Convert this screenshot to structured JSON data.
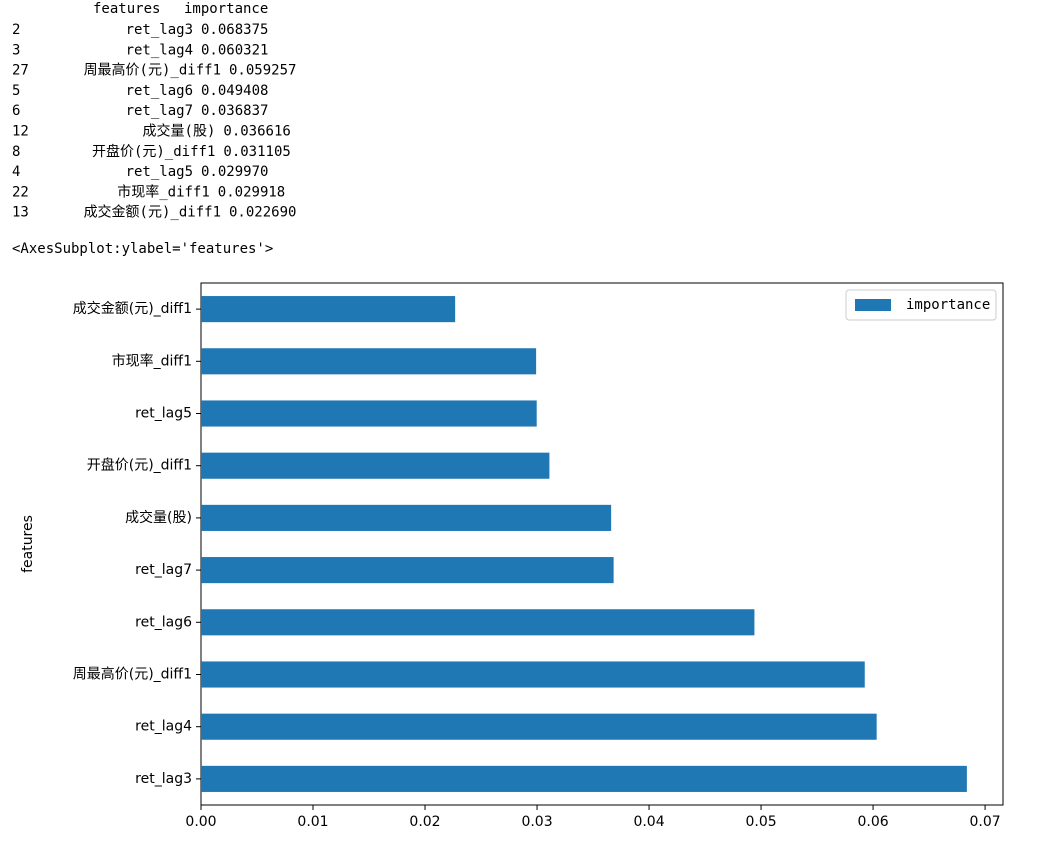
{
  "table": {
    "header": [
      "features",
      "importance"
    ],
    "rows": [
      [
        "2",
        "ret_lag3",
        "0.068375"
      ],
      [
        "3",
        "ret_lag4",
        "0.060321"
      ],
      [
        "27",
        "周最高价(元)_diff1",
        "0.059257"
      ],
      [
        "5",
        "ret_lag6",
        "0.049408"
      ],
      [
        "6",
        "ret_lag7",
        "0.036837"
      ],
      [
        "12",
        "成交量(股)",
        "0.036616"
      ],
      [
        "8",
        "开盘价(元)_diff1",
        "0.031105"
      ],
      [
        "4",
        "ret_lag5",
        "0.029970"
      ],
      [
        "22",
        "市现率_diff1",
        "0.029918"
      ],
      [
        "13",
        "成交金额(元)_diff1",
        "0.022690"
      ]
    ]
  },
  "repr": "<AxesSubplot:ylabel='features'>",
  "chart_data": {
    "type": "barh",
    "ylabel": "features",
    "categories": [
      "ret_lag3",
      "ret_lag4",
      "周最高价(元)_diff1",
      "ret_lag6",
      "ret_lag7",
      "成交量(股)",
      "开盘价(元)_diff1",
      "ret_lag5",
      "市现率_diff1",
      "成交金额(元)_diff1"
    ],
    "series": [
      {
        "name": "importance",
        "color": "#1f77b4",
        "values": [
          0.068375,
          0.060321,
          0.059257,
          0.049408,
          0.036837,
          0.036616,
          0.031105,
          0.02997,
          0.029918,
          0.02269
        ]
      }
    ],
    "xlim": [
      0,
      0.0716
    ],
    "xticks": [
      {
        "value": 0,
        "label": "0.00"
      },
      {
        "value": 0.01,
        "label": "0.01"
      },
      {
        "value": 0.02,
        "label": "0.02"
      },
      {
        "value": 0.03,
        "label": "0.03"
      },
      {
        "value": 0.04,
        "label": "0.04"
      },
      {
        "value": 0.05,
        "label": "0.05"
      },
      {
        "value": 0.06,
        "label": "0.06"
      },
      {
        "value": 0.07,
        "label": "0.07"
      }
    ],
    "legend": "upper right"
  }
}
